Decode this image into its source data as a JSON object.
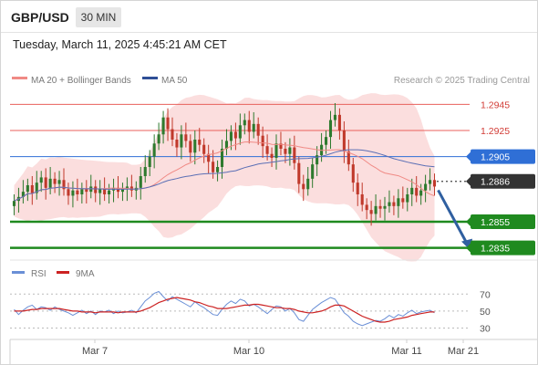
{
  "header": {
    "symbol": "GBP/USD",
    "timeframe": "30 MIN",
    "timestamp": "Tuesday, March 11, 2025 4:45:21 AM CET"
  },
  "legend": {
    "ma20": "MA 20 + Bollinger Bands",
    "ma50": "MA 50",
    "credit": "Research © 2025 Trading Central"
  },
  "rsi_legend": {
    "rsi": "RSI",
    "ma": "9MA"
  },
  "colors": {
    "red_level": "#e8605c",
    "blue_level": "#2f6fd6",
    "green_level": "#1f8a1f",
    "current": "#333333",
    "candle_up": "#2e7a2e",
    "candle_down": "#c0392b",
    "band": "#fbdada",
    "ma50": "#5b6fb5",
    "arrow": "#2f5fa0",
    "rsi": "#6a8fd6",
    "rsi_ma": "#cc2222"
  },
  "chart_data": {
    "type": "candlestick",
    "x_labels": [
      "Mar 7",
      "Mar 10",
      "Mar 11",
      "Mar 21"
    ],
    "levels": [
      {
        "value": 1.2945,
        "label": "1.2945",
        "kind": "resistance"
      },
      {
        "value": 1.2925,
        "label": "1.2925",
        "kind": "resistance"
      },
      {
        "value": 1.2905,
        "label": "1.2905",
        "kind": "pivot"
      },
      {
        "value": 1.2886,
        "label": "1.2886",
        "kind": "current"
      },
      {
        "value": 1.2855,
        "label": "1.2855",
        "kind": "support"
      },
      {
        "value": 1.2835,
        "label": "1.2835",
        "kind": "support"
      }
    ],
    "close": [
      1.2871,
      1.2874,
      1.2878,
      1.2883,
      1.2877,
      1.2885,
      1.2889,
      1.2881,
      1.2888,
      1.2884,
      1.2887,
      1.288,
      1.2875,
      1.2879,
      1.2876,
      1.288,
      1.2878,
      1.2882,
      1.2877,
      1.288,
      1.2876,
      1.2879,
      1.2881,
      1.2878,
      1.288,
      1.2882,
      1.2879,
      1.2881,
      1.289,
      1.2897,
      1.2905,
      1.2915,
      1.2922,
      1.2935,
      1.2926,
      1.2918,
      1.2912,
      1.2922,
      1.2917,
      1.2908,
      1.2918,
      1.2914,
      1.2907,
      1.2901,
      1.2893,
      1.2897,
      1.2911,
      1.2917,
      1.2924,
      1.2919,
      1.2929,
      1.2933,
      1.2924,
      1.293,
      1.2921,
      1.2913,
      1.2907,
      1.2904,
      1.2915,
      1.2911,
      1.2907,
      1.2912,
      1.29,
      1.2884,
      1.288,
      1.2888,
      1.2899,
      1.2906,
      1.2914,
      1.292,
      1.2933,
      1.2937,
      1.2925,
      1.2909,
      1.2899,
      1.2885,
      1.2876,
      1.2868,
      1.2864,
      1.2861,
      1.2867,
      1.2865,
      1.2867,
      1.287,
      1.2867,
      1.2873,
      1.287,
      1.2876,
      1.2881,
      1.2875,
      1.2879,
      1.2884,
      1.2887,
      1.2882
    ],
    "ylim": [
      1.2827,
      1.2953
    ],
    "rsi": {
      "ticks": [
        70,
        50,
        30
      ],
      "values": [
        52,
        46,
        51,
        55,
        57,
        52,
        55,
        54,
        51,
        55,
        52,
        50,
        48,
        45,
        48,
        51,
        47,
        50,
        46,
        50,
        49,
        51,
        47,
        50,
        48,
        49,
        51,
        48,
        55,
        62,
        66,
        71,
        73,
        67,
        62,
        67,
        64,
        61,
        58,
        55,
        61,
        57,
        54,
        50,
        46,
        45,
        52,
        58,
        62,
        59,
        64,
        62,
        56,
        58,
        55,
        51,
        47,
        52,
        56,
        55,
        50,
        53,
        48,
        40,
        38,
        45,
        52,
        56,
        60,
        63,
        66,
        64,
        56,
        48,
        44,
        38,
        35,
        33,
        35,
        37,
        39,
        38,
        41,
        45,
        42,
        46,
        44,
        48,
        51,
        47,
        49,
        50,
        51,
        48
      ],
      "ma9": [
        50,
        50,
        50,
        51,
        52,
        52,
        53,
        53,
        53,
        53,
        53,
        52,
        51,
        50,
        50,
        49,
        49,
        49,
        48,
        49,
        49,
        49,
        49,
        48,
        49,
        49,
        49,
        49,
        50,
        52,
        54,
        57,
        60,
        62,
        64,
        65,
        66,
        65,
        64,
        63,
        61,
        60,
        58,
        56,
        55,
        53,
        53,
        53,
        54,
        55,
        56,
        57,
        57,
        58,
        58,
        57,
        56,
        55,
        54,
        54,
        53,
        53,
        52,
        50,
        49,
        48,
        48,
        49,
        50,
        52,
        55,
        57,
        57,
        56,
        53,
        50,
        47,
        44,
        42,
        40,
        38,
        37,
        37,
        38,
        40,
        41,
        42,
        43,
        45,
        46,
        47,
        48,
        49,
        49
      ],
      "ylim": [
        22,
        80
      ]
    }
  }
}
